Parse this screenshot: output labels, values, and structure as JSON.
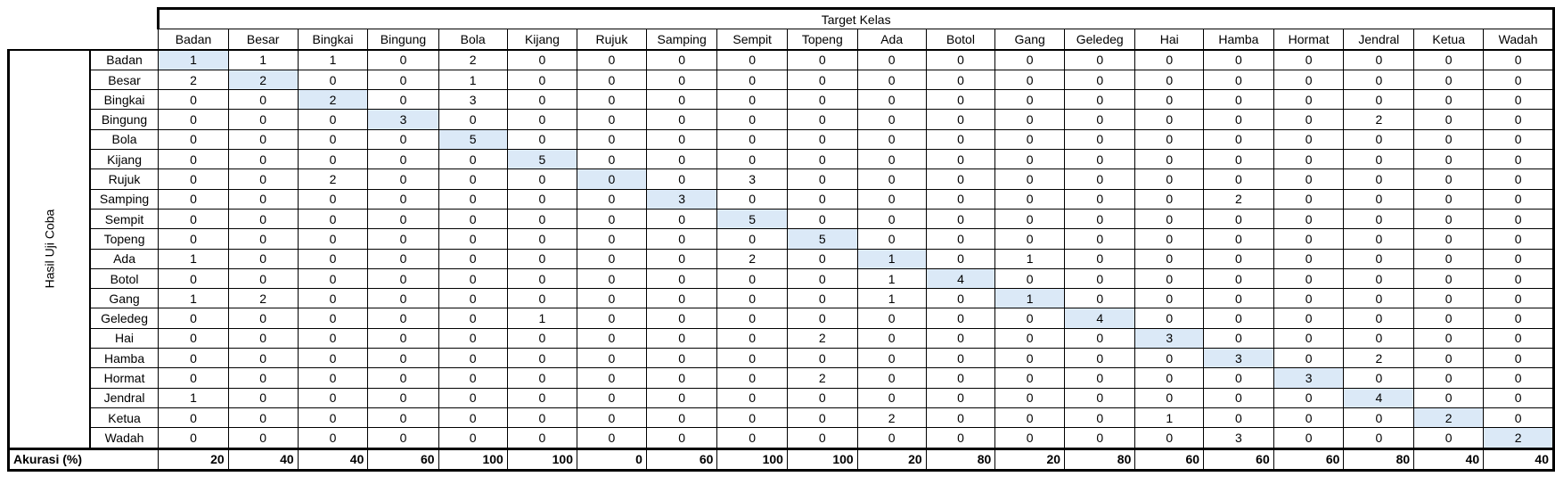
{
  "table": {
    "target_title": "Target Kelas",
    "axis_label": "Hasil Uji Coba",
    "accuracy_label": "Akurasi (%)",
    "classes": [
      "Badan",
      "Besar",
      "Bingkai",
      "Bingung",
      "Bola",
      "Kijang",
      "Rujuk",
      "Samping",
      "Sempit",
      "Topeng",
      "Ada",
      "Botol",
      "Gang",
      "Geledeg",
      "Hai",
      "Hamba",
      "Hormat",
      "Jendral",
      "Ketua",
      "Wadah"
    ],
    "matrix": [
      [
        1,
        1,
        1,
        0,
        2,
        0,
        0,
        0,
        0,
        0,
        0,
        0,
        0,
        0,
        0,
        0,
        0,
        0,
        0,
        0
      ],
      [
        2,
        2,
        0,
        0,
        1,
        0,
        0,
        0,
        0,
        0,
        0,
        0,
        0,
        0,
        0,
        0,
        0,
        0,
        0,
        0
      ],
      [
        0,
        0,
        2,
        0,
        3,
        0,
        0,
        0,
        0,
        0,
        0,
        0,
        0,
        0,
        0,
        0,
        0,
        0,
        0,
        0
      ],
      [
        0,
        0,
        0,
        3,
        0,
        0,
        0,
        0,
        0,
        0,
        0,
        0,
        0,
        0,
        0,
        0,
        0,
        2,
        0,
        0
      ],
      [
        0,
        0,
        0,
        0,
        5,
        0,
        0,
        0,
        0,
        0,
        0,
        0,
        0,
        0,
        0,
        0,
        0,
        0,
        0,
        0
      ],
      [
        0,
        0,
        0,
        0,
        0,
        5,
        0,
        0,
        0,
        0,
        0,
        0,
        0,
        0,
        0,
        0,
        0,
        0,
        0,
        0
      ],
      [
        0,
        0,
        2,
        0,
        0,
        0,
        0,
        0,
        3,
        0,
        0,
        0,
        0,
        0,
        0,
        0,
        0,
        0,
        0,
        0
      ],
      [
        0,
        0,
        0,
        0,
        0,
        0,
        0,
        3,
        0,
        0,
        0,
        0,
        0,
        0,
        0,
        2,
        0,
        0,
        0,
        0
      ],
      [
        0,
        0,
        0,
        0,
        0,
        0,
        0,
        0,
        5,
        0,
        0,
        0,
        0,
        0,
        0,
        0,
        0,
        0,
        0,
        0
      ],
      [
        0,
        0,
        0,
        0,
        0,
        0,
        0,
        0,
        0,
        5,
        0,
        0,
        0,
        0,
        0,
        0,
        0,
        0,
        0,
        0
      ],
      [
        1,
        0,
        0,
        0,
        0,
        0,
        0,
        0,
        2,
        0,
        1,
        0,
        1,
        0,
        0,
        0,
        0,
        0,
        0,
        0
      ],
      [
        0,
        0,
        0,
        0,
        0,
        0,
        0,
        0,
        0,
        0,
        1,
        4,
        0,
        0,
        0,
        0,
        0,
        0,
        0,
        0
      ],
      [
        1,
        2,
        0,
        0,
        0,
        0,
        0,
        0,
        0,
        0,
        1,
        0,
        1,
        0,
        0,
        0,
        0,
        0,
        0,
        0
      ],
      [
        0,
        0,
        0,
        0,
        0,
        1,
        0,
        0,
        0,
        0,
        0,
        0,
        0,
        4,
        0,
        0,
        0,
        0,
        0,
        0
      ],
      [
        0,
        0,
        0,
        0,
        0,
        0,
        0,
        0,
        0,
        2,
        0,
        0,
        0,
        0,
        3,
        0,
        0,
        0,
        0,
        0
      ],
      [
        0,
        0,
        0,
        0,
        0,
        0,
        0,
        0,
        0,
        0,
        0,
        0,
        0,
        0,
        0,
        3,
        0,
        2,
        0,
        0
      ],
      [
        0,
        0,
        0,
        0,
        0,
        0,
        0,
        0,
        0,
        2,
        0,
        0,
        0,
        0,
        0,
        0,
        3,
        0,
        0,
        0
      ],
      [
        1,
        0,
        0,
        0,
        0,
        0,
        0,
        0,
        0,
        0,
        0,
        0,
        0,
        0,
        0,
        0,
        0,
        4,
        0,
        0
      ],
      [
        0,
        0,
        0,
        0,
        0,
        0,
        0,
        0,
        0,
        0,
        2,
        0,
        0,
        0,
        1,
        0,
        0,
        0,
        2,
        0
      ],
      [
        0,
        0,
        0,
        0,
        0,
        0,
        0,
        0,
        0,
        0,
        0,
        0,
        0,
        0,
        0,
        3,
        0,
        0,
        0,
        2
      ]
    ],
    "accuracy": [
      20,
      40,
      40,
      60,
      100,
      100,
      0,
      60,
      100,
      100,
      20,
      80,
      20,
      80,
      60,
      60,
      60,
      80,
      40,
      40
    ],
    "highlight_color": "#dbe9f7"
  }
}
